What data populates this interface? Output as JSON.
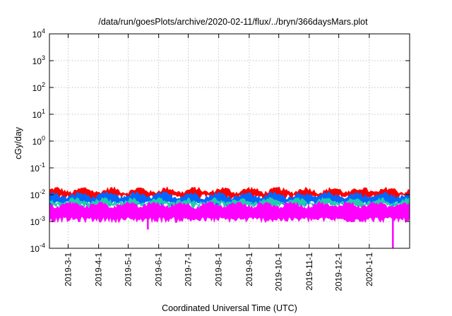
{
  "chart_data": {
    "type": "area",
    "title": "/data/run/goesPlots/archive/2020-02-11/flux/../bryn/366daysMars.plot",
    "xlabel": "Coordinated Universal Time (UTC)",
    "ylabel": "cGy/day",
    "yscale": "log",
    "ylim": [
      0.0001,
      10000
    ],
    "xlim": [
      "2019-02-10",
      "2020-02-11"
    ],
    "grid": true,
    "yticks": [
      {
        "value": 0.0001,
        "mantissa": "10",
        "exp": "-4"
      },
      {
        "value": 0.001,
        "mantissa": "10",
        "exp": "-3"
      },
      {
        "value": 0.01,
        "mantissa": "10",
        "exp": "-2"
      },
      {
        "value": 0.1,
        "mantissa": "10",
        "exp": "-1"
      },
      {
        "value": 1,
        "mantissa": "10",
        "exp": "0"
      },
      {
        "value": 10,
        "mantissa": "10",
        "exp": "1"
      },
      {
        "value": 100,
        "mantissa": "10",
        "exp": "2"
      },
      {
        "value": 1000,
        "mantissa": "10",
        "exp": "3"
      },
      {
        "value": 10000,
        "mantissa": "10",
        "exp": "4"
      }
    ],
    "xticks": [
      {
        "date": "2019-03-01",
        "label": "2019-3-1"
      },
      {
        "date": "2019-04-01",
        "label": "2019-4-1"
      },
      {
        "date": "2019-05-01",
        "label": "2019-5-1"
      },
      {
        "date": "2019-06-01",
        "label": "2019-6-1"
      },
      {
        "date": "2019-07-01",
        "label": "2019-7-1"
      },
      {
        "date": "2019-08-01",
        "label": "2019-8-1"
      },
      {
        "date": "2019-09-01",
        "label": "2019-9-1"
      },
      {
        "date": "2019-10-01",
        "label": "2019-10-1"
      },
      {
        "date": "2019-11-01",
        "label": "2019-11-1"
      },
      {
        "date": "2019-12-01",
        "label": "2019-12-1"
      },
      {
        "date": "2020-01-01",
        "label": "2020-1-1"
      }
    ],
    "series": [
      {
        "color": "#ff0000",
        "top": 0.0145,
        "bottom": 0.0085
      },
      {
        "color": "#0066ff",
        "top": 0.0095,
        "bottom": 0.0048
      },
      {
        "color": "#22ccaa",
        "top": 0.0058,
        "bottom": 0.0042
      },
      {
        "color": "#ff00ff",
        "top": 0.0042,
        "bottom": 0.0012
      }
    ],
    "annotations": [
      {
        "date": "2019-05-21",
        "value": 0.0005
      },
      {
        "date": "2020-01-25",
        "value": 0.0001
      }
    ]
  }
}
